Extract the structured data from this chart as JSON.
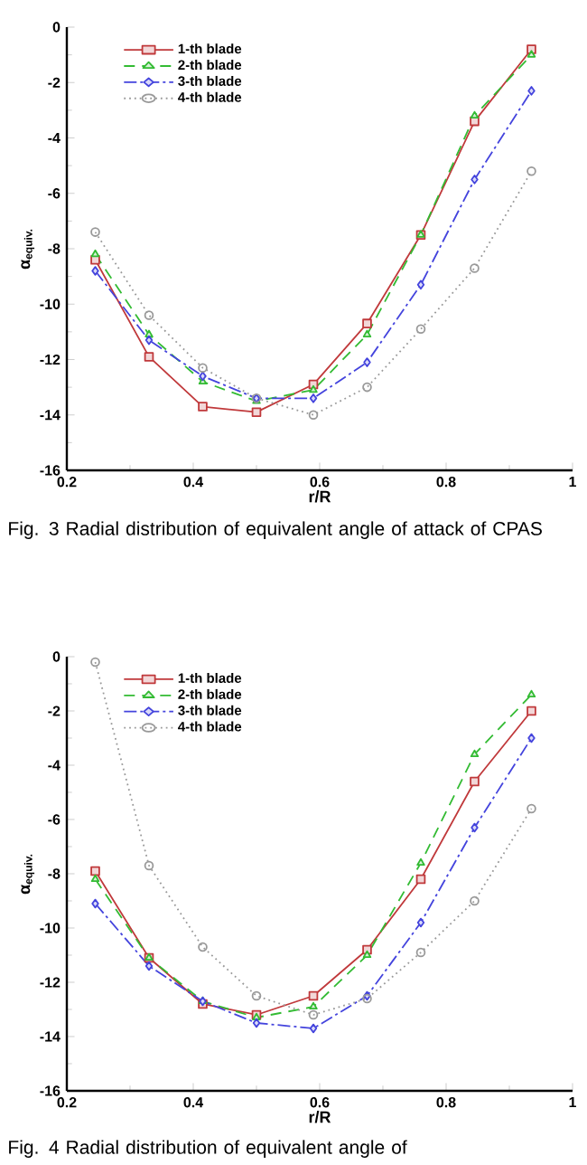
{
  "chart_data": [
    {
      "type": "line",
      "x": [
        0.245,
        0.33,
        0.415,
        0.5,
        0.59,
        0.675,
        0.76,
        0.845,
        0.935
      ],
      "xlabel": "r/R",
      "ylabel": "α$_{equiv.}$",
      "xlim": [
        0.2,
        1
      ],
      "ylim": [
        -16,
        0
      ],
      "xticks": [
        0.2,
        0.4,
        0.6,
        0.8,
        1
      ],
      "yticks": [
        -16,
        -14,
        -12,
        -10,
        -8,
        -6,
        -4,
        -2,
        0
      ],
      "legend": "top left",
      "series": [
        {
          "name": "1-th blade",
          "color": "#c0393b",
          "marker": "square",
          "line_style": "solid",
          "values": [
            -8.4,
            -11.9,
            -13.7,
            -13.9,
            -12.9,
            -10.7,
            -7.5,
            -3.4,
            -0.8
          ]
        },
        {
          "name": "2-th blade",
          "color": "#33bb33",
          "marker": "triangle",
          "line_style": "dashed",
          "values": [
            -8.2,
            -11.1,
            -12.8,
            -13.5,
            -13.1,
            -11.1,
            -7.5,
            -3.2,
            -1.0
          ]
        },
        {
          "name": "3-th blade",
          "color": "#4444dd",
          "marker": "diamond",
          "line_style": "dashdot",
          "values": [
            -8.8,
            -11.3,
            -12.6,
            -13.4,
            -13.4,
            -12.1,
            -9.3,
            -5.5,
            -2.3
          ]
        },
        {
          "name": "4-th blade",
          "color": "#999999",
          "marker": "circle",
          "line_style": "dotted",
          "values": [
            -7.4,
            -10.4,
            -12.3,
            -13.4,
            -14.0,
            -13.0,
            -10.9,
            -8.7,
            -5.2
          ]
        }
      ],
      "annotations": [
        "Fig. 3 Radial distribution of equivalent angle of attack of CPAS"
      ]
    },
    {
      "type": "line",
      "x": [
        0.245,
        0.33,
        0.415,
        0.5,
        0.59,
        0.675,
        0.76,
        0.845,
        0.935
      ],
      "xlabel": "r/R",
      "ylabel": "α$_{equiv.}$",
      "xlim": [
        0.2,
        1
      ],
      "ylim": [
        -16,
        0
      ],
      "xticks": [
        0.2,
        0.4,
        0.6,
        0.8,
        1
      ],
      "yticks": [
        -16,
        -14,
        -12,
        -10,
        -8,
        -6,
        -4,
        -2,
        0
      ],
      "legend": "top left",
      "series": [
        {
          "name": "1-th blade",
          "color": "#c0393b",
          "marker": "square",
          "line_style": "solid",
          "values": [
            -7.9,
            -11.1,
            -12.8,
            -13.2,
            -12.5,
            -10.8,
            -8.2,
            -4.6,
            -2.0
          ]
        },
        {
          "name": "2-th blade",
          "color": "#33bb33",
          "marker": "triangle",
          "line_style": "dashed",
          "values": [
            -8.2,
            -11.1,
            -12.7,
            -13.3,
            -12.9,
            -11.0,
            -7.6,
            -3.6,
            -1.4
          ]
        },
        {
          "name": "3-th blade",
          "color": "#4444dd",
          "marker": "diamond",
          "line_style": "dashdot",
          "values": [
            -9.1,
            -11.4,
            -12.7,
            -13.5,
            -13.7,
            -12.5,
            -9.8,
            -6.3,
            -3.0
          ]
        },
        {
          "name": "4-th blade",
          "color": "#999999",
          "marker": "circle",
          "line_style": "dotted",
          "values": [
            -0.2,
            -7.7,
            -10.7,
            -12.5,
            -13.2,
            -12.6,
            -10.9,
            -9.0,
            -5.6
          ]
        }
      ],
      "annotations": [
        "Fig. 4 Radial distribution of equivalent angle of"
      ]
    }
  ]
}
